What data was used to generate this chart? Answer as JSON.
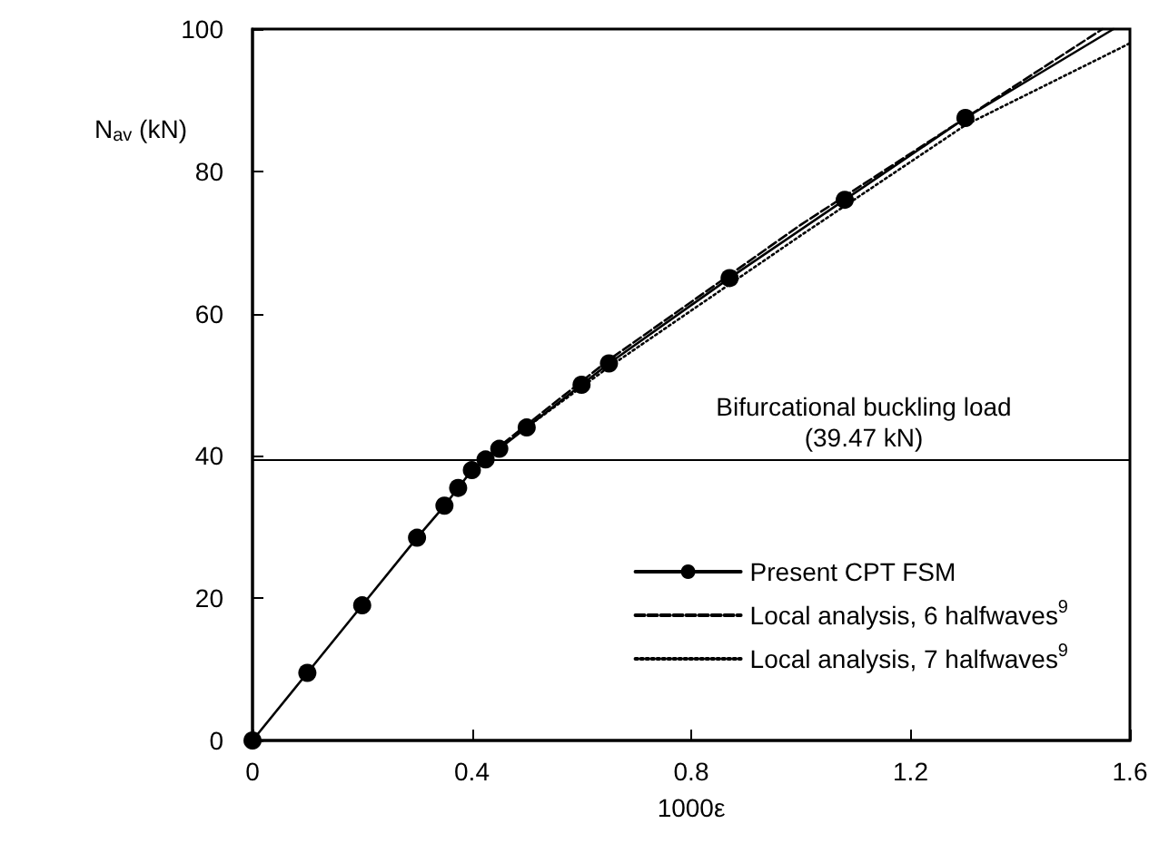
{
  "chart_data": {
    "type": "line",
    "xlabel": "1000ε",
    "ylabel": "N$_{av}$ (kN)",
    "xlim": [
      0,
      1.6
    ],
    "xticks": [
      0,
      0.4,
      0.8,
      1.2,
      1.6
    ],
    "ylim": [
      0,
      100
    ],
    "yticks": [
      0,
      20,
      40,
      60,
      80,
      100
    ],
    "grid": false,
    "legend": "bottom right",
    "series": [
      {
        "name": "Present CPT FSM",
        "color": "#000000",
        "marker": "circle",
        "line_style": "solid",
        "x": [
          0,
          0.1,
          0.2,
          0.3,
          0.35,
          0.375,
          0.4,
          0.425,
          0.45,
          0.5,
          0.6,
          0.65,
          0.87,
          1.08,
          1.3
        ],
        "values": [
          0,
          9.5,
          19,
          28.5,
          33,
          35.5,
          38,
          39.5,
          41,
          44,
          50,
          53,
          65,
          76,
          87.5
        ]
      },
      {
        "name": "Local analysis, 6 halfwaves$^{9}$",
        "color": "#000000",
        "marker": "none",
        "line_style": "dashed",
        "x": [
          0.42,
          0.65,
          1.0,
          1.55
        ],
        "values": [
          39.5,
          53.5,
          72.5,
          100
        ]
      },
      {
        "name": "Local analysis, 7 halfwaves$^{9}$",
        "color": "#000000",
        "marker": "none",
        "line_style": "dotted",
        "x": [
          0.42,
          0.65,
          1.0,
          1.3,
          1.6
        ],
        "values": [
          39.5,
          52.5,
          71,
          86.5,
          98
        ]
      },
      {
        "color": "#000000",
        "marker": "none",
        "line_style": "solid",
        "x": [
          1.3,
          1.57
        ],
        "values": [
          87.5,
          100
        ]
      }
    ],
    "ref_lines": [
      {
        "axis": "y",
        "value": 39.47,
        "label": "Bifurcational buckling load\n(39.47 kN)",
        "color": "#000000",
        "line_style": "solid"
      }
    ]
  }
}
